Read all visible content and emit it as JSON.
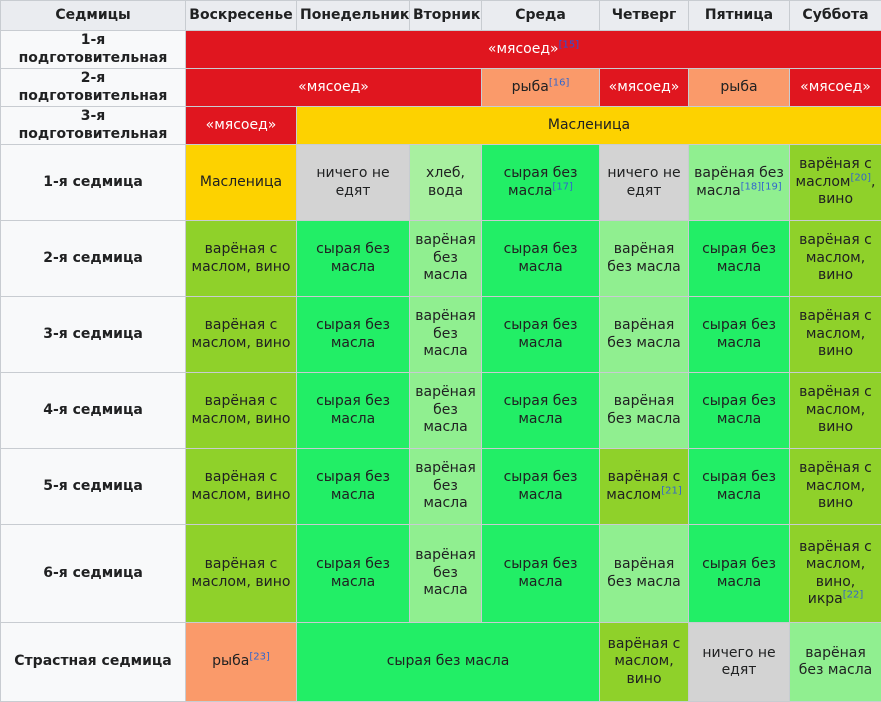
{
  "header": {
    "weeks_col": "Седмицы",
    "days": [
      "Воскресенье",
      "Понедельник",
      "Вторник",
      "Среда",
      "Четверг",
      "Пятница",
      "Суббота"
    ]
  },
  "prep": [
    {
      "label": "1-я подготовительная",
      "cells": [
        {
          "text": "«мясоед»",
          "ref": "[15]"
        }
      ]
    },
    {
      "label": "2-я подготовительная",
      "cells": [
        {
          "text": "«мясоед»"
        },
        {
          "text": "рыба",
          "ref": "[16]"
        },
        {
          "text": "«мясоед»"
        },
        {
          "text": "рыба"
        },
        {
          "text": "«мясоед»"
        }
      ]
    },
    {
      "label": "3-я подготовительная",
      "cells": [
        {
          "text": "«мясоед»"
        },
        {
          "text": "Масленица"
        }
      ]
    }
  ],
  "weeks": [
    {
      "label": "1-я седмица",
      "cells": [
        {
          "text": "Масленица"
        },
        {
          "text": "ничего не едят"
        },
        {
          "text": "хлеб, вода"
        },
        {
          "text": "сырая без масла",
          "ref": "[17]"
        },
        {
          "text": "ничего не едят"
        },
        {
          "text": "варёная без масла",
          "ref": "[18][19]"
        },
        {
          "text": "варёная с маслом",
          "ref": "[20]",
          "tail": ", вино"
        }
      ]
    },
    {
      "label": "2-я седмица",
      "cells": [
        {
          "text": "варёная с маслом, вино"
        },
        {
          "text": "сырая без масла"
        },
        {
          "text": "варёная без масла"
        },
        {
          "text": "сырая без масла"
        },
        {
          "text": "варёная без масла"
        },
        {
          "text": "сырая без масла"
        },
        {
          "text": "варёная с маслом, вино"
        }
      ]
    },
    {
      "label": "3-я седмица",
      "cells": [
        {
          "text": "варёная с маслом, вино"
        },
        {
          "text": "сырая без масла"
        },
        {
          "text": "варёная без масла"
        },
        {
          "text": "сырая без масла"
        },
        {
          "text": "варёная без масла"
        },
        {
          "text": "сырая без масла"
        },
        {
          "text": "варёная с маслом, вино"
        }
      ]
    },
    {
      "label": "4-я седмица",
      "cells": [
        {
          "text": "варёная с маслом, вино"
        },
        {
          "text": "сырая без масла"
        },
        {
          "text": "варёная без масла"
        },
        {
          "text": "сырая без масла"
        },
        {
          "text": "варёная без масла"
        },
        {
          "text": "сырая без масла"
        },
        {
          "text": "варёная с маслом, вино"
        }
      ]
    },
    {
      "label": "5-я седмица",
      "cells": [
        {
          "text": "варёная с маслом, вино"
        },
        {
          "text": "сырая без масла"
        },
        {
          "text": "варёная без масла"
        },
        {
          "text": "сырая без масла"
        },
        {
          "text": "варёная с маслом",
          "ref": "[21]"
        },
        {
          "text": "сырая без масла"
        },
        {
          "text": "варёная с маслом, вино"
        }
      ]
    },
    {
      "label": "6-я седмица",
      "cells": [
        {
          "text": "варёная с маслом, вино"
        },
        {
          "text": "сырая без масла"
        },
        {
          "text": "варёная без масла"
        },
        {
          "text": "сырая без масла"
        },
        {
          "text": "варёная без масла"
        },
        {
          "text": "сырая без масла"
        },
        {
          "text": "варёная с маслом, вино, икра",
          "ref": "[22]"
        }
      ]
    },
    {
      "label": "Страстная седмица",
      "cells": [
        {
          "text": "рыба",
          "ref": "[23]"
        },
        {
          "text": "сырая без масла"
        },
        {
          "text": "варёная с маслом, вино"
        },
        {
          "text": "ничего не едят"
        },
        {
          "text": "варёная без масла"
        }
      ]
    }
  ],
  "colors": {
    "header_bg": "#eaecf0",
    "myasoed": "#e0161f",
    "fish": "#fa9a6a",
    "maslenitsa": "#fdd200",
    "nothing": "#d3d3d3",
    "bread": "#a8f0a0",
    "raw": "#22ee66",
    "cooked_oil": "#8fd12a",
    "cooked_no_oil": "#90ef90"
  }
}
